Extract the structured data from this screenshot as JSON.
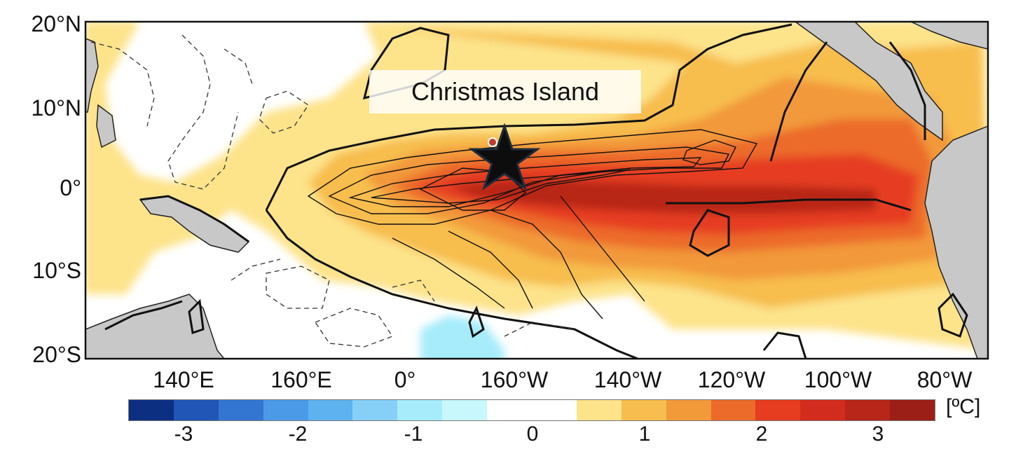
{
  "map": {
    "latitude_labels": [
      "20°N",
      "10°N",
      "0°",
      "10°S",
      "20°S"
    ],
    "longitude_labels": [
      "140°E",
      "160°E",
      "0°",
      "160°W",
      "140°W",
      "120°W",
      "100°W",
      "80°W"
    ],
    "place_label": "Christmas Island",
    "marker_icon": "star-icon",
    "colors": {
      "land": "#c8c8c8",
      "neutral": "#ffffff",
      "contour": "#111111"
    }
  },
  "colorbar": {
    "units": "[ºC]",
    "tick_labels": [
      "-3",
      "-2",
      "-1",
      "0",
      "1",
      "2",
      "3"
    ],
    "colors": [
      "#0d2f82",
      "#2155b6",
      "#3276d2",
      "#4b9ae8",
      "#5fb2f0",
      "#86d0f8",
      "#a6ecfb",
      "#c8f8fb",
      "#ffffff",
      "#ffffff",
      "#fde38a",
      "#f7bd4e",
      "#f2993a",
      "#ec6b2b",
      "#e63c20",
      "#d22c1e",
      "#b82519",
      "#9b1f17"
    ]
  }
}
